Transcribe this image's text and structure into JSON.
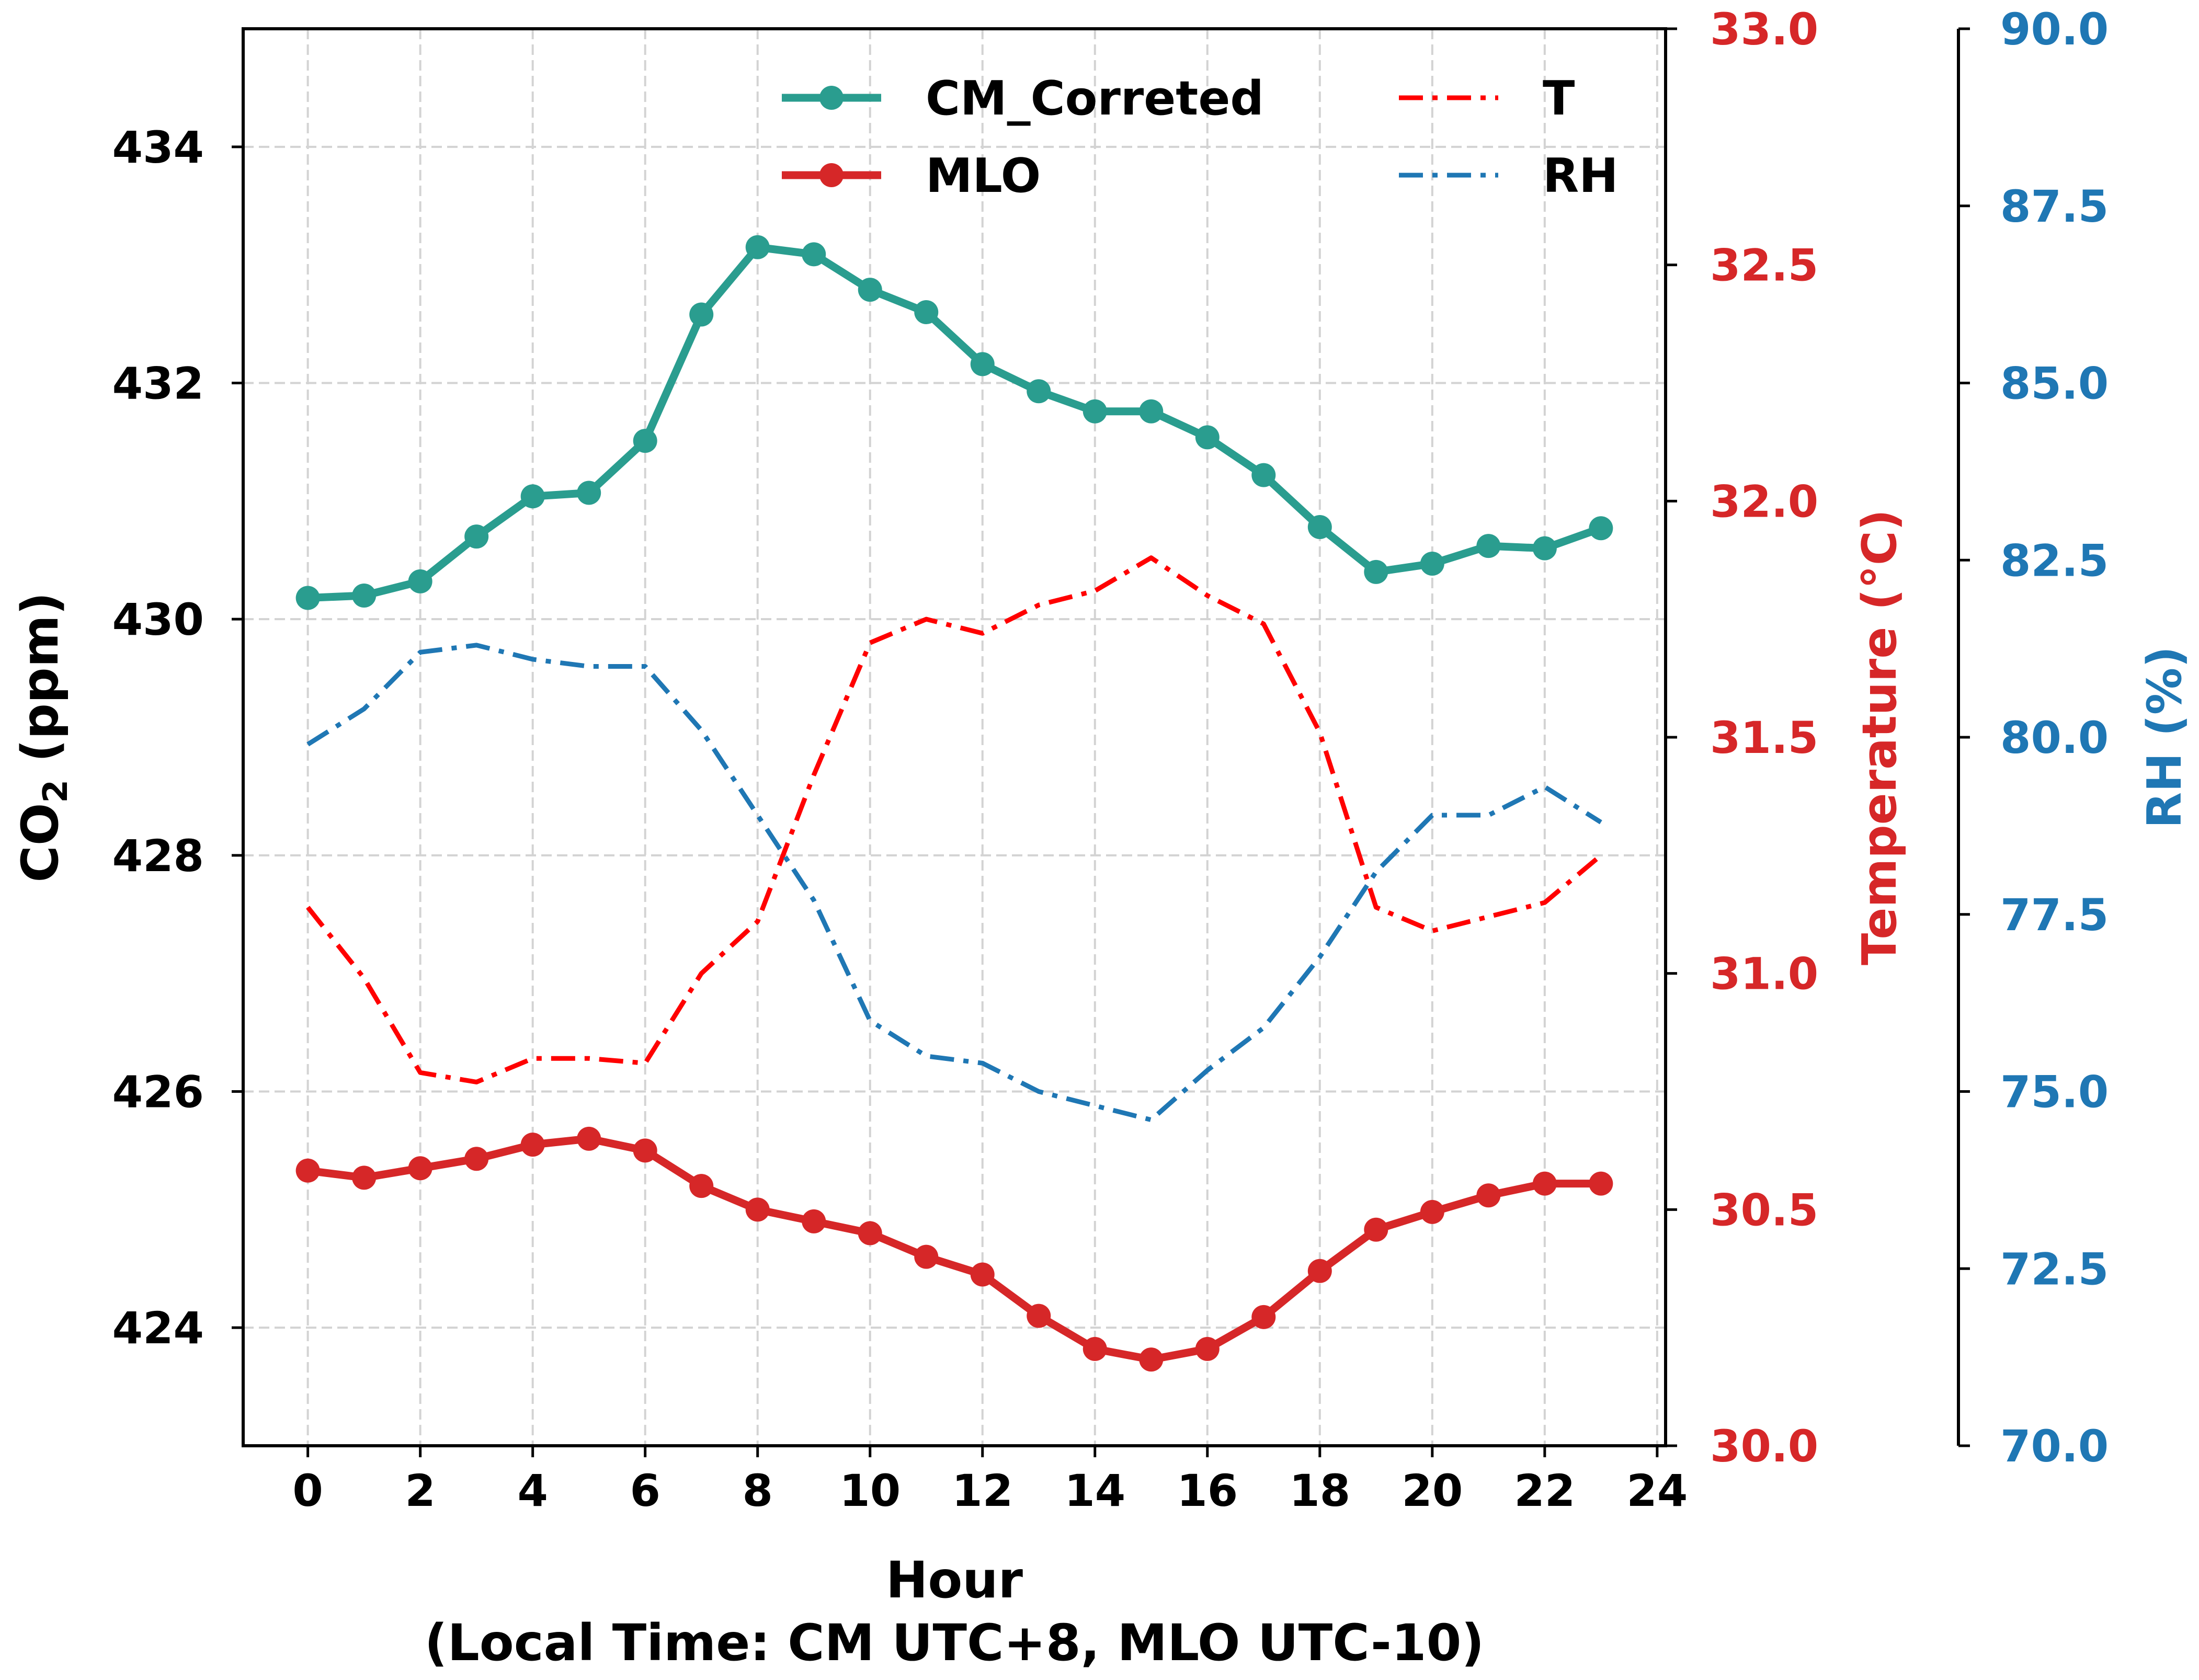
{
  "chart_data": {
    "type": "line",
    "x": [
      0,
      1,
      2,
      3,
      4,
      5,
      6,
      7,
      8,
      9,
      10,
      11,
      12,
      13,
      14,
      15,
      16,
      17,
      18,
      19,
      20,
      21,
      22,
      23
    ],
    "xlim": [
      -1.15,
      24.15
    ],
    "xticks": [
      0,
      2,
      4,
      6,
      8,
      10,
      12,
      14,
      16,
      18,
      20,
      22,
      24
    ],
    "xlabel": "Hour",
    "xlabel_sub": "(Local Time: CM UTC+8, MLO UTC-10)",
    "grid": true,
    "legend_location": "top-center",
    "axes": {
      "left": {
        "label_main": "CO",
        "label_sub": "2",
        "label_rest": " (ppm)",
        "ylim": [
          423,
          435
        ],
        "ticks": [
          424,
          426,
          428,
          430,
          432,
          434
        ],
        "color": "#000000"
      },
      "right1": {
        "label": "Temperature (°C)",
        "ylim": [
          30.0,
          33.0
        ],
        "ticks": [
          "30.0",
          "30.5",
          "31.0",
          "31.5",
          "32.0",
          "32.5",
          "33.0"
        ],
        "color": "#d62728"
      },
      "right2": {
        "label": "RH (%)",
        "ylim": [
          70.0,
          90.0
        ],
        "ticks": [
          "70.0",
          "72.5",
          "75.0",
          "77.5",
          "80.0",
          "82.5",
          "85.0",
          "87.5",
          "90.0"
        ],
        "color": "#1f77b4"
      }
    },
    "series": [
      {
        "name": "CM_Correted",
        "axis": "left",
        "style": "solid-marker",
        "color": "#2a9d8f",
        "values": [
          430.18,
          430.2,
          430.32,
          430.7,
          431.04,
          431.07,
          431.51,
          432.58,
          433.15,
          433.09,
          432.79,
          432.6,
          432.16,
          431.93,
          431.76,
          431.76,
          431.54,
          431.22,
          430.78,
          430.4,
          430.47,
          430.62,
          430.6,
          430.77
        ]
      },
      {
        "name": "MLO",
        "axis": "left",
        "style": "solid-marker",
        "color": "#d62728",
        "values": [
          425.33,
          425.27,
          425.35,
          425.43,
          425.55,
          425.6,
          425.5,
          425.2,
          425.0,
          424.9,
          424.8,
          424.6,
          424.45,
          424.1,
          423.82,
          423.73,
          423.82,
          424.09,
          424.48,
          424.83,
          424.98,
          425.12,
          425.22,
          425.22
        ]
      },
      {
        "name": "T",
        "axis": "right1",
        "style": "dashdot",
        "color": "#ff0000",
        "values": [
          31.14,
          30.99,
          30.79,
          30.77,
          30.82,
          30.82,
          30.81,
          31.0,
          31.11,
          31.42,
          31.7,
          31.75,
          31.72,
          31.78,
          31.81,
          31.88,
          31.8,
          31.74,
          31.51,
          31.14,
          31.09,
          31.12,
          31.15,
          31.25
        ]
      },
      {
        "name": "RH",
        "axis": "right2",
        "style": "dashdot",
        "color": "#1f77b4",
        "values": [
          79.9,
          80.4,
          81.2,
          81.3,
          81.1,
          81.0,
          81.0,
          80.1,
          78.9,
          77.7,
          76.0,
          75.5,
          75.4,
          75.0,
          74.8,
          74.6,
          75.3,
          75.9,
          76.9,
          78.1,
          78.9,
          78.9,
          79.3,
          78.8
        ]
      }
    ]
  }
}
